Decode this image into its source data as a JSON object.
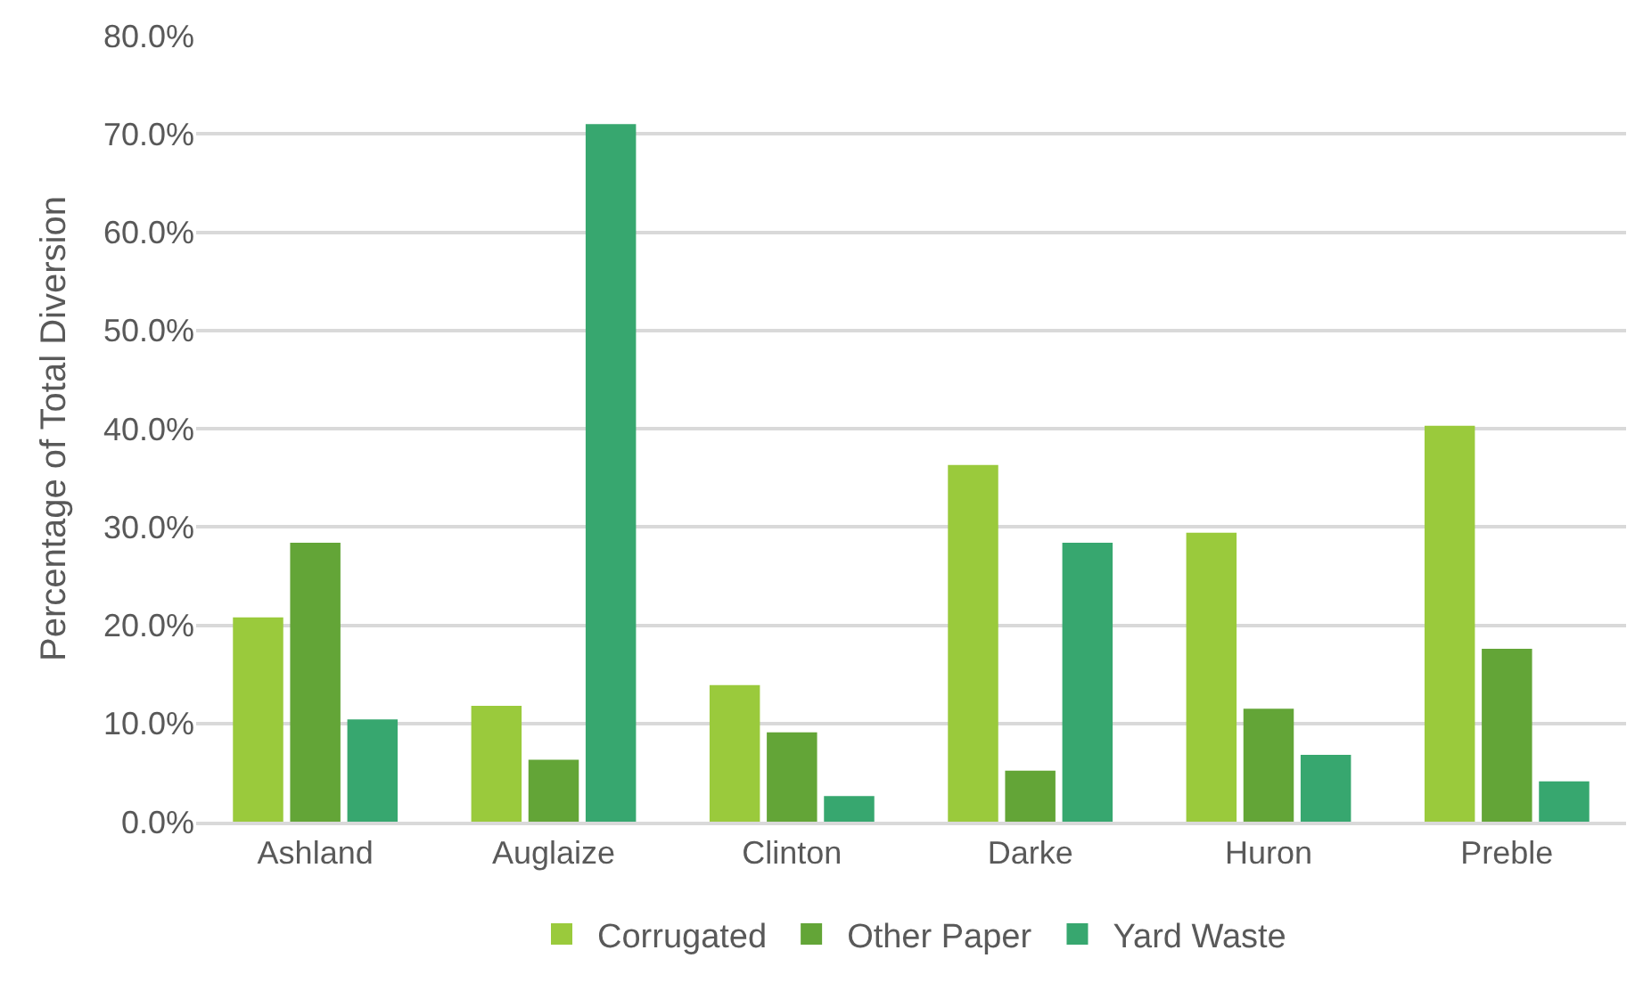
{
  "chart_data": {
    "type": "bar",
    "ylabel": "Percentage of Total Diversion",
    "categories": [
      "Ashland",
      "Auglaize",
      "Clinton",
      "Darke",
      "Huron",
      "Preble"
    ],
    "series": [
      {
        "name": "Corrugated",
        "color": "#9aca3c",
        "values": [
          20.8,
          11.8,
          13.9,
          36.3,
          29.4,
          40.3
        ]
      },
      {
        "name": "Other Paper",
        "color": "#63a537",
        "values": [
          28.4,
          6.3,
          9.1,
          5.2,
          11.5,
          17.6
        ]
      },
      {
        "name": "Yard Waste",
        "color": "#37a76f",
        "values": [
          10.4,
          71.0,
          2.6,
          28.4,
          6.8,
          4.1
        ]
      }
    ],
    "ylim": [
      0,
      80
    ],
    "yticks": [
      {
        "value": 0,
        "label": "0.0%"
      },
      {
        "value": 10,
        "label": "10.0%"
      },
      {
        "value": 20,
        "label": "20.0%"
      },
      {
        "value": 30,
        "label": "30.0%"
      },
      {
        "value": 40,
        "label": "40.0%"
      },
      {
        "value": 50,
        "label": "50.0%"
      },
      {
        "value": 60,
        "label": "60.0%"
      },
      {
        "value": 70,
        "label": "70.0%"
      },
      {
        "value": 80,
        "label": "80.0%"
      }
    ],
    "grid": "y",
    "legend": "bottom"
  }
}
